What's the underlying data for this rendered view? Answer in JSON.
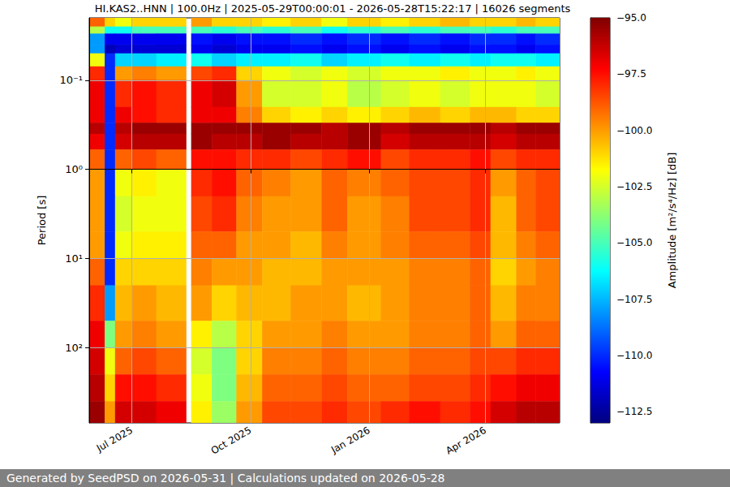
{
  "chart_data": {
    "type": "heatmap",
    "title": "HI.KAS2..HNN | 100.0Hz | 2025-05-29T00:00:01 - 2026-05-28T15:22:17 | 16026 segments",
    "y_label": "Period [s]",
    "footer": "Generated by SeedPSD on 2026-05-31 | Calculations updated on 2026-05-28",
    "log": "y",
    "grid": true,
    "xlim": [
      "2025-05-29T00:00:01",
      "2026-05-28T15:22:17"
    ],
    "xticks": [
      {
        "value": "2025-07-01",
        "label": "Jul 2025"
      },
      {
        "value": "2025-10-01",
        "label": "Oct 2025"
      },
      {
        "value": "2026-01-01",
        "label": "Jan 2026"
      },
      {
        "value": "2026-04-01",
        "label": "Apr 2026"
      }
    ],
    "ylim": [
      0.02,
      700
    ],
    "yticks": [
      {
        "value": 0.1,
        "label": "10⁻¹"
      },
      {
        "value": 1,
        "label": "10⁰"
      },
      {
        "value": 10,
        "label": "10¹"
      },
      {
        "value": 100,
        "label": "10²"
      }
    ],
    "x_edges": [
      "2025-05-29T00:00:01",
      "2025-06-10",
      "2025-06-18",
      "2025-07-01",
      "2025-07-20",
      "2025-08-12",
      "2025-08-16",
      "2025-09-01",
      "2025-09-20",
      "2025-10-10",
      "2025-11-01",
      "2025-11-25",
      "2025-12-15",
      "2026-01-10",
      "2026-02-01",
      "2026-02-25",
      "2026-03-20",
      "2026-04-05",
      "2026-04-25",
      "2026-05-10",
      "2026-05-28T15:22:17"
    ],
    "y_edges": [
      0.02,
      0.025,
      0.03,
      0.04,
      0.05,
      0.07,
      0.1,
      0.2,
      0.3,
      0.4,
      0.6,
      1,
      2,
      5,
      10,
      20,
      50,
      100,
      200,
      400,
      700
    ],
    "values": [
      [
        -99,
        -101,
        -102,
        -101,
        -101,
        null,
        -100,
        -101,
        -101,
        -101.5,
        -101,
        -102,
        -101,
        -101.5,
        -101,
        -100.5,
        -101,
        -101,
        -100.5,
        -101
      ],
      [
        -103,
        -106,
        -106,
        -105,
        -105,
        null,
        -105,
        -105.5,
        -105,
        -105.5,
        -105,
        -106,
        -105.5,
        -105,
        -105.5,
        -105,
        -105,
        -105.5,
        -105,
        -105
      ],
      [
        -108,
        -111,
        -111,
        -111,
        -111,
        null,
        -110.5,
        -111,
        -110.5,
        -110.5,
        -110,
        -110.5,
        -110,
        -110.5,
        -110,
        -110.5,
        -110,
        -110,
        -110.5,
        -110
      ],
      [
        -108,
        -112,
        -111.5,
        -111.5,
        -111.5,
        null,
        -111,
        -111.5,
        -111,
        -111,
        -110.5,
        -111,
        -110.5,
        -111,
        -110.5,
        -111,
        -110.5,
        -110.5,
        -111,
        -110.5
      ],
      [
        -102,
        -110,
        -107,
        -107,
        -106.5,
        null,
        -106,
        -107,
        -106.5,
        -106.5,
        -106,
        -107,
        -106.5,
        -106,
        -106.5,
        -106,
        -106.5,
        -106,
        -106,
        -106.5
      ],
      [
        -98,
        -110,
        -100,
        -99.5,
        -100,
        null,
        -98.5,
        -98,
        -101,
        -102,
        -102.5,
        -102,
        -102.5,
        -102,
        -102,
        -101.5,
        -102,
        -102,
        -101.5,
        -102
      ],
      [
        -97,
        -110,
        -98,
        -97.5,
        -98,
        null,
        -97,
        -96.5,
        -100,
        -102.5,
        -102.5,
        -102,
        -103,
        -102.5,
        -102,
        -102.5,
        -102,
        -102,
        -102,
        -102.5
      ],
      [
        -97,
        -110,
        -97,
        -97.5,
        -98,
        null,
        -97,
        -97,
        -99.5,
        -101,
        -101.5,
        -101,
        -101.5,
        -101,
        -100.5,
        -101,
        -100.5,
        -100.5,
        -101,
        -101
      ],
      [
        -96,
        -110,
        -96,
        -95.5,
        -95.5,
        null,
        -95.5,
        -95.5,
        -95.5,
        -95.5,
        -95.5,
        -96,
        -95.5,
        -96,
        -95.5,
        -95.5,
        -95.5,
        -96,
        -95.5,
        -95.5
      ],
      [
        -97,
        -110,
        -96.5,
        -96,
        -96,
        null,
        -95.5,
        -96,
        -96,
        -95.5,
        -96,
        -96,
        -95.5,
        -96.5,
        -96,
        -96,
        -96,
        -96.5,
        -96,
        -96
      ],
      [
        -99,
        -110,
        -99,
        -98.5,
        -99,
        null,
        -97.5,
        -97.5,
        -98,
        -98,
        -98.5,
        -98,
        -97.5,
        -98.5,
        -98,
        -98,
        -97.5,
        -98.5,
        -98,
        -98
      ],
      [
        -100,
        -110,
        -102,
        -101.5,
        -102,
        null,
        -98,
        -97.5,
        -99,
        -99.5,
        -100,
        -99,
        -99.5,
        -99,
        -98.5,
        -98.5,
        -98,
        -100,
        -99,
        -98.5
      ],
      [
        -100,
        -110,
        -102.5,
        -102,
        -102,
        null,
        -98.5,
        -98,
        -99.5,
        -100,
        -100,
        -99,
        -100,
        -99.5,
        -98.5,
        -98.5,
        -98,
        -100.5,
        -99,
        -98.5
      ],
      [
        -100,
        -110,
        -102,
        -101.5,
        -101.5,
        null,
        -99,
        -99,
        -100,
        -100,
        -100.5,
        -99.5,
        -100,
        -99.5,
        -99,
        -99,
        -98.5,
        -100.5,
        -99.5,
        -99
      ],
      [
        -99,
        -110,
        -101,
        -101,
        -101,
        null,
        -99.5,
        -100,
        -100,
        -100.5,
        -100.5,
        -100,
        -100,
        -100,
        -99.5,
        -99.5,
        -99,
        -101,
        -100,
        -99.5
      ],
      [
        -98,
        -108,
        -100.5,
        -100,
        -100.5,
        null,
        -100,
        -101,
        -100.5,
        -100.5,
        -100,
        -100,
        -100.5,
        -100,
        -99.5,
        -99.5,
        -99,
        -100.5,
        -99.5,
        -99.5
      ],
      [
        -97,
        -104,
        -100,
        -99.5,
        -100,
        null,
        -101.5,
        -103,
        -101,
        -100,
        -100,
        -99.5,
        -100,
        -100,
        -99.5,
        -99.5,
        -99,
        -100,
        -99,
        -99
      ],
      [
        -96.5,
        -102,
        -99,
        -98.5,
        -99,
        null,
        -102.5,
        -104,
        -101,
        -99.5,
        -99.5,
        -99,
        -99.5,
        -99.5,
        -99,
        -99,
        -98.5,
        -98.5,
        -98,
        -98
      ],
      [
        -96,
        -101,
        -97.5,
        -97.5,
        -98,
        null,
        -102,
        -104,
        -100.5,
        -99,
        -99,
        -98.5,
        -99,
        -99,
        -98.5,
        -98.5,
        -98,
        -97.5,
        -97,
        -97
      ],
      [
        -95.5,
        -100,
        -96.5,
        -96.5,
        -97,
        null,
        -101.5,
        -103.5,
        -100,
        -98.5,
        -98.5,
        -98,
        -98.5,
        -98,
        -97.5,
        -98,
        -97.5,
        -96.5,
        -96,
        -96
      ]
    ],
    "colorbar": {
      "label": "Amplitude [m²/s⁴/Hz] [dB]",
      "lim": [
        -113,
        -95
      ],
      "ticks": [
        {
          "value": -112.5,
          "label": "−112.5"
        },
        {
          "value": -110,
          "label": "−110.0"
        },
        {
          "value": -107.5,
          "label": "−107.5"
        },
        {
          "value": -105,
          "label": "−105.0"
        },
        {
          "value": -102.5,
          "label": "−102.5"
        },
        {
          "value": -100,
          "label": "−100.0"
        },
        {
          "value": -97.5,
          "label": "−97.5"
        },
        {
          "value": -95,
          "label": "−95.0"
        }
      ]
    }
  }
}
